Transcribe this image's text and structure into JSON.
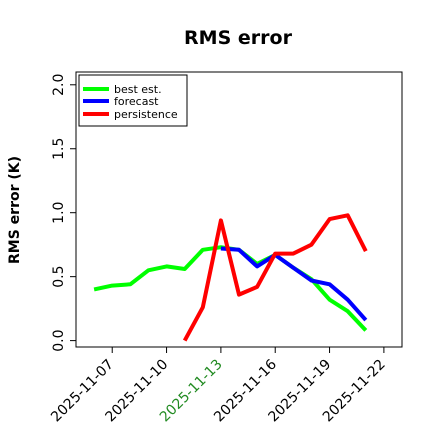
{
  "chart_data": {
    "type": "line",
    "title": "RMS error",
    "xlabel": "",
    "ylabel": "RMS error (K)",
    "ylim": [
      -0.05,
      2.1
    ],
    "xlim": [
      "2025-11-05",
      "2025-11-23"
    ],
    "grid": false,
    "legend_position": "top-left",
    "yticks": [
      {
        "value": 0.0,
        "label": "0.0"
      },
      {
        "value": 0.5,
        "label": "0.5"
      },
      {
        "value": 1.0,
        "label": "1.0"
      },
      {
        "value": 1.5,
        "label": "1.5"
      },
      {
        "value": 2.0,
        "label": "2.0"
      }
    ],
    "xticks": [
      {
        "date": "2025-11-07",
        "label": "2025-11-07",
        "color": "#000000"
      },
      {
        "date": "2025-11-10",
        "label": "2025-11-10",
        "color": "#000000"
      },
      {
        "date": "2025-11-13",
        "label": "2025-11-13",
        "color": "#228b22"
      },
      {
        "date": "2025-11-16",
        "label": "2025-11-16",
        "color": "#000000"
      },
      {
        "date": "2025-11-19",
        "label": "2025-11-19",
        "color": "#000000"
      },
      {
        "date": "2025-11-22",
        "label": "2025-11-22",
        "color": "#000000"
      }
    ],
    "series": [
      {
        "name": "best est.",
        "color": "#00ff00",
        "x": [
          "2025-11-06",
          "2025-11-07",
          "2025-11-08",
          "2025-11-09",
          "2025-11-10",
          "2025-11-11",
          "2025-11-12",
          "2025-11-13",
          "2025-11-14",
          "2025-11-15",
          "2025-11-16",
          "2025-11-17",
          "2025-11-18",
          "2025-11-19",
          "2025-11-20",
          "2025-11-21"
        ],
        "y": [
          0.4,
          0.43,
          0.44,
          0.55,
          0.58,
          0.56,
          0.71,
          0.73,
          0.71,
          0.6,
          0.67,
          0.57,
          0.48,
          0.32,
          0.23,
          0.08
        ]
      },
      {
        "name": "forecast",
        "color": "#0000ff",
        "x": [
          "2025-11-13",
          "2025-11-14",
          "2025-11-15",
          "2025-11-16",
          "2025-11-17",
          "2025-11-18",
          "2025-11-19",
          "2025-11-20",
          "2025-11-21"
        ],
        "y": [
          0.72,
          0.71,
          0.58,
          0.67,
          0.57,
          0.47,
          0.44,
          0.32,
          0.16
        ]
      },
      {
        "name": "persistence",
        "color": "#ff0000",
        "x": [
          "2025-11-11",
          "2025-11-12",
          "2025-11-13",
          "2025-11-14",
          "2025-11-15",
          "2025-11-16",
          "2025-11-17",
          "2025-11-18",
          "2025-11-19",
          "2025-11-20",
          "2025-11-21"
        ],
        "y": [
          0.0,
          0.26,
          0.94,
          0.36,
          0.42,
          0.68,
          0.68,
          0.75,
          0.95,
          0.98,
          0.7
        ]
      }
    ]
  }
}
